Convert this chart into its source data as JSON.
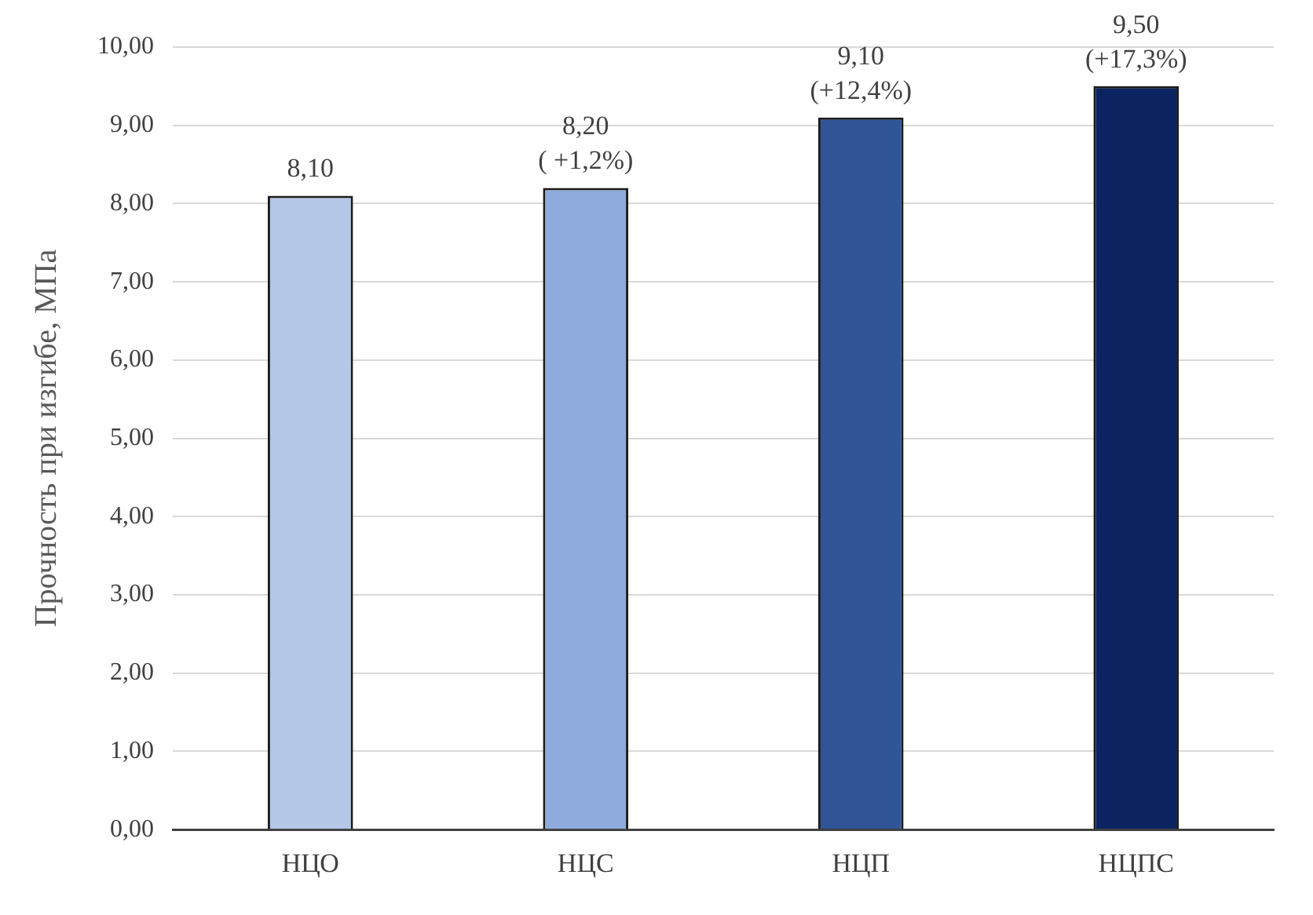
{
  "chart_data": {
    "type": "bar",
    "ylabel": "Прочность при изгибе, МПа",
    "categories": [
      "НЦО",
      "НЦС",
      "НЦП",
      "НЦПС"
    ],
    "values": [
      8.1,
      8.2,
      9.1,
      9.5
    ],
    "colors": [
      "#b4c7e7",
      "#8faadc",
      "#2f5597",
      "#0b2360"
    ],
    "value_labels": [
      "8,10",
      "8,20\n( +1,2%)",
      "9,10\n(+12,4%)",
      "9,50\n(+17,3%)"
    ],
    "ylim": [
      0,
      10
    ],
    "yticks": [
      {
        "value": 0,
        "label": "0,00"
      },
      {
        "value": 1,
        "label": "1,00"
      },
      {
        "value": 2,
        "label": "2,00"
      },
      {
        "value": 3,
        "label": "3,00"
      },
      {
        "value": 4,
        "label": "4,00"
      },
      {
        "value": 5,
        "label": "5,00"
      },
      {
        "value": 6,
        "label": "6,00"
      },
      {
        "value": 7,
        "label": "7,00"
      },
      {
        "value": 8,
        "label": "8,00"
      },
      {
        "value": 9,
        "label": "9,00"
      },
      {
        "value": 10,
        "label": "10,00"
      }
    ],
    "grid": "y",
    "legend": false
  }
}
